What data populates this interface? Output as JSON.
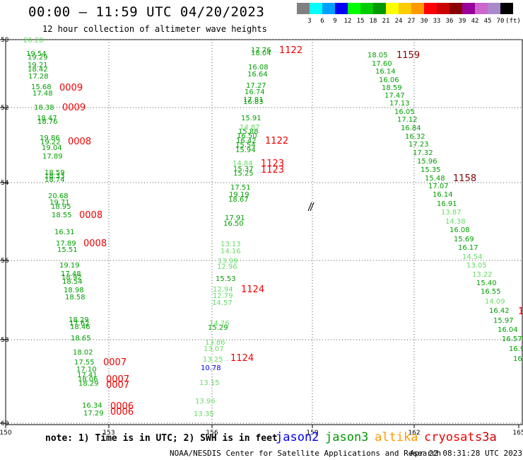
{
  "header": {
    "title": "00:00 – 11:59 UTC 04/20/2023",
    "subtitle": "12 hour collection of altimeter wave heights"
  },
  "legend": {
    "colors": [
      "#808080",
      "#00ffff",
      "#00a0ff",
      "#0000ff",
      "#00ff00",
      "#00cc00",
      "#009900",
      "#ffff00",
      "#ffcc00",
      "#ff9900",
      "#ff0000",
      "#cc0000",
      "#880000",
      "#990099",
      "#cc66cc",
      "#aa88cc",
      "#000000"
    ],
    "labels": [
      "3",
      "6",
      "9",
      "12",
      "15",
      "18",
      "21",
      "24",
      "27",
      "30",
      "33",
      "36",
      "39",
      "42",
      "45",
      "70",
      "(ft)"
    ]
  },
  "axes": {
    "lat_labels": [
      "50",
      "52",
      "54",
      "56",
      "58",
      "60"
    ],
    "lon_labels": [
      "150",
      "153",
      "156",
      "159",
      "162",
      "165"
    ]
  },
  "observations": [
    {
      "t": "20.20",
      "c": "lg"
    },
    {
      "t": "19.54",
      "c": "g"
    },
    {
      "t": "19.29",
      "c": "g"
    },
    {
      "t": "19.21",
      "c": "g"
    },
    {
      "t": "18.42",
      "c": "g"
    },
    {
      "t": "17.28",
      "c": "g"
    },
    {
      "t": "15.68",
      "c": "g"
    },
    {
      "t": "17.48",
      "c": "g"
    },
    {
      "t": "18.38",
      "c": "g"
    },
    {
      "t": "18.47",
      "c": "g"
    },
    {
      "t": "18.76",
      "c": "g"
    },
    {
      "t": "19.86",
      "c": "g"
    },
    {
      "t": "19.22",
      "c": "g"
    },
    {
      "t": "19.04",
      "c": "g"
    },
    {
      "t": "17.89",
      "c": "g"
    },
    {
      "t": "18.59",
      "c": "g"
    },
    {
      "t": "18.33",
      "c": "g"
    },
    {
      "t": "18.74",
      "c": "g"
    },
    {
      "t": "20.68",
      "c": "g"
    },
    {
      "t": "19.71",
      "c": "g"
    },
    {
      "t": "18.95",
      "c": "g"
    },
    {
      "t": "18.55",
      "c": "g"
    },
    {
      "t": "16.31",
      "c": "g"
    },
    {
      "t": "17.89",
      "c": "g"
    },
    {
      "t": "15.51",
      "c": "g"
    },
    {
      "t": "19.19",
      "c": "g"
    },
    {
      "t": "17.48",
      "c": "g"
    },
    {
      "t": "18.92",
      "c": "g"
    },
    {
      "t": "18.54",
      "c": "g"
    },
    {
      "t": "18.98",
      "c": "g"
    },
    {
      "t": "18.58",
      "c": "g"
    },
    {
      "t": "18.29",
      "c": "g"
    },
    {
      "t": "17.62",
      "c": "g"
    },
    {
      "t": "18.46",
      "c": "g"
    },
    {
      "t": "18.65",
      "c": "g"
    },
    {
      "t": "18.02",
      "c": "g"
    },
    {
      "t": "17.55",
      "c": "g"
    },
    {
      "t": "17.10",
      "c": "g"
    },
    {
      "t": "17.41",
      "c": "g"
    },
    {
      "t": "18.06",
      "c": "g"
    },
    {
      "t": "18.29",
      "c": "g"
    },
    {
      "t": "16.34",
      "c": "g"
    },
    {
      "t": "17.29",
      "c": "g"
    },
    {
      "t": "17.76",
      "c": "g"
    },
    {
      "t": "18.04",
      "c": "g"
    },
    {
      "t": "16.08",
      "c": "g"
    },
    {
      "t": "16.64",
      "c": "g"
    },
    {
      "t": "17.27",
      "c": "g"
    },
    {
      "t": "16.74",
      "c": "g"
    },
    {
      "t": "17.81",
      "c": "g"
    },
    {
      "t": "16.83",
      "c": "g"
    },
    {
      "t": "15.91",
      "c": "g"
    },
    {
      "t": "14.87",
      "c": "lg"
    },
    {
      "t": "15.88",
      "c": "g"
    },
    {
      "t": "16.50",
      "c": "g"
    },
    {
      "t": "16.42",
      "c": "g"
    },
    {
      "t": "15.54",
      "c": "g"
    },
    {
      "t": "15.94",
      "c": "g"
    },
    {
      "t": "14.84",
      "c": "lg"
    },
    {
      "t": "15.37",
      "c": "g"
    },
    {
      "t": "15.25",
      "c": "g"
    },
    {
      "t": "17.51",
      "c": "g"
    },
    {
      "t": "19.19",
      "c": "g"
    },
    {
      "t": "18.67",
      "c": "g"
    },
    {
      "t": "17.91",
      "c": "g"
    },
    {
      "t": "16.50",
      "c": "g"
    },
    {
      "t": "13.13",
      "c": "lg"
    },
    {
      "t": "14.16",
      "c": "lg"
    },
    {
      "t": "13.99",
      "c": "lg"
    },
    {
      "t": "12.96",
      "c": "lg"
    },
    {
      "t": "15.53",
      "c": "g"
    },
    {
      "t": "12.94",
      "c": "lg"
    },
    {
      "t": "12.79",
      "c": "lg"
    },
    {
      "t": "14.57",
      "c": "lg"
    },
    {
      "t": "14.76",
      "c": "lg"
    },
    {
      "t": "15.29",
      "c": "g"
    },
    {
      "t": "13.86",
      "c": "lg"
    },
    {
      "t": "13.07",
      "c": "lg"
    },
    {
      "t": "13.25",
      "c": "lg"
    },
    {
      "t": "10.78",
      "c": "b"
    },
    {
      "t": "13.15",
      "c": "lg"
    },
    {
      "t": "13.96",
      "c": "lg"
    },
    {
      "t": "13.35",
      "c": "lg"
    },
    {
      "t": "18.05",
      "c": "g"
    },
    {
      "t": "17.60",
      "c": "g"
    },
    {
      "t": "16.14",
      "c": "g"
    },
    {
      "t": "16.06",
      "c": "g"
    },
    {
      "t": "18.59",
      "c": "g"
    },
    {
      "t": "17.47",
      "c": "g"
    },
    {
      "t": "17.13",
      "c": "g"
    },
    {
      "t": "16.05",
      "c": "g"
    },
    {
      "t": "17.12",
      "c": "g"
    },
    {
      "t": "16.84",
      "c": "g"
    },
    {
      "t": "16.32",
      "c": "g"
    },
    {
      "t": "17.23",
      "c": "g"
    },
    {
      "t": "17.32",
      "c": "g"
    },
    {
      "t": "15.96",
      "c": "g"
    },
    {
      "t": "15.35",
      "c": "g"
    },
    {
      "t": "15.48",
      "c": "g"
    },
    {
      "t": "17.07",
      "c": "g"
    },
    {
      "t": "16.14",
      "c": "g"
    },
    {
      "t": "16.91",
      "c": "g"
    },
    {
      "t": "13.87",
      "c": "lg"
    },
    {
      "t": "14.38",
      "c": "lg"
    },
    {
      "t": "16.08",
      "c": "g"
    },
    {
      "t": "15.69",
      "c": "g"
    },
    {
      "t": "16.17",
      "c": "g"
    },
    {
      "t": "14.54",
      "c": "lg"
    },
    {
      "t": "13.05",
      "c": "lg"
    },
    {
      "t": "13.22",
      "c": "lg"
    },
    {
      "t": "15.40",
      "c": "g"
    },
    {
      "t": "16.55",
      "c": "g"
    },
    {
      "t": "14.09",
      "c": "lg"
    },
    {
      "t": "16.42",
      "c": "g"
    },
    {
      "t": "15.97",
      "c": "g"
    },
    {
      "t": "16.04",
      "c": "g"
    },
    {
      "t": "16.57",
      "c": "g"
    },
    {
      "t": "16.9",
      "c": "g"
    },
    {
      "t": "16",
      "c": "g"
    }
  ],
  "times": [
    {
      "t": "0009",
      "c": "red"
    },
    {
      "t": "0009",
      "c": "red"
    },
    {
      "t": "0008",
      "c": "red"
    },
    {
      "t": "0008",
      "c": "red"
    },
    {
      "t": "0008",
      "c": "red"
    },
    {
      "t": "0007",
      "c": "red"
    },
    {
      "t": "0007",
      "c": "red"
    },
    {
      "t": "0007",
      "c": "red"
    },
    {
      "t": "0006",
      "c": "red"
    },
    {
      "t": "0006",
      "c": "red"
    },
    {
      "t": "1122",
      "c": "red"
    },
    {
      "t": "1122",
      "c": "red"
    },
    {
      "t": "1123",
      "c": "red"
    },
    {
      "t": "1123",
      "c": "red"
    },
    {
      "t": "1124",
      "c": "red"
    },
    {
      "t": "1124",
      "c": "red"
    },
    {
      "t": "1159",
      "c": "dred"
    },
    {
      "t": "1158",
      "c": "dred"
    },
    {
      "t": "1",
      "c": "red"
    }
  ],
  "footer": {
    "note": "note: 1) Time is in UTC; 2) SWH is in feet",
    "satellites": [
      {
        "name": "jason2",
        "color": "#0000ee"
      },
      {
        "name": "jason3",
        "color": "#009900"
      },
      {
        "name": "altika",
        "color": "#ff9900"
      },
      {
        "name": "cryosat",
        "color": "#ee0000"
      },
      {
        "name": "s3a",
        "color": "#cc0000"
      }
    ],
    "credit": "NOAA/NESDIS Center for Satellite Applications and Research",
    "timestamp": "Apr 22 08:31:28 UTC 2023"
  }
}
